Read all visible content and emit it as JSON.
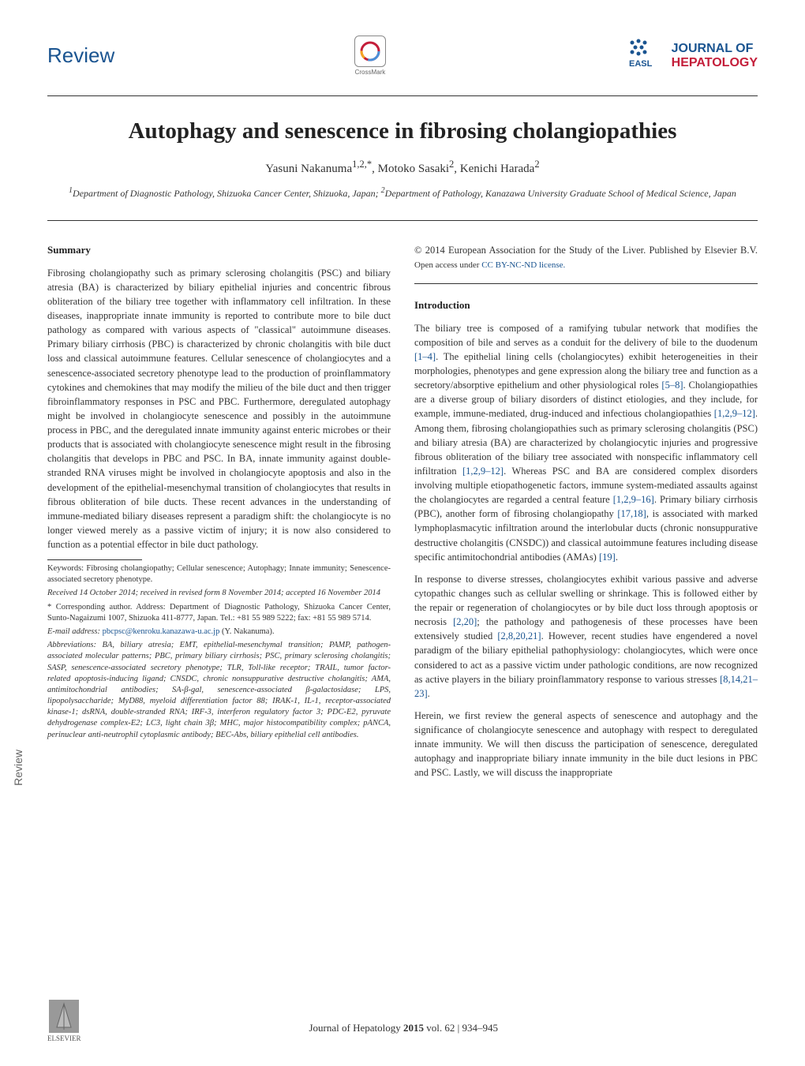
{
  "header": {
    "review_label": "Review",
    "crossmark_label": "CrossMark",
    "journal_line1": "JOURNAL OF",
    "journal_line2": "HEPATOLOGY",
    "easl_label": "EASL"
  },
  "title": "Autophagy and senescence in fibrosing cholangiopathies",
  "authors_html": "Yasuni Nakanuma<sup>1,2,*</sup>, Motoko Sasaki<sup>2</sup>, Kenichi Harada<sup>2</sup>",
  "affiliations_html": "<sup>1</sup>Department of Diagnostic Pathology, Shizuoka Cancer Center, Shizuoka, Japan; <sup>2</sup>Department of Pathology, Kanazawa University Graduate School of Medical Science, Japan",
  "left_column": {
    "summary_heading": "Summary",
    "summary_text": "Fibrosing cholangiopathy such as primary sclerosing cholangitis (PSC) and biliary atresia (BA) is characterized by biliary epithelial injuries and concentric fibrous obliteration of the biliary tree together with inflammatory cell infiltration. In these diseases, inappropriate innate immunity is reported to contribute more to bile duct pathology as compared with various aspects of \"classical\" autoimmune diseases. Primary biliary cirrhosis (PBC) is characterized by chronic cholangitis with bile duct loss and classical autoimmune features. Cellular senescence of cholangiocytes and a senescence-associated secretory phenotype lead to the production of proinflammatory cytokines and chemokines that may modify the milieu of the bile duct and then trigger fibroinflammatory responses in PSC and PBC. Furthermore, deregulated autophagy might be involved in cholangiocyte senescence and possibly in the autoimmune process in PBC, and the deregulated innate immunity against enteric microbes or their products that is associated with cholangiocyte senescence might result in the fibrosing cholangitis that develops in PBC and PSC. In BA, innate immunity against double-stranded RNA viruses might be involved in cholangiocyte apoptosis and also in the development of the epithelial-mesenchymal transition of cholangiocytes that results in fibrous obliteration of bile ducts. These recent advances in the understanding of immune-mediated biliary diseases represent a paradigm shift: the cholangiocyte is no longer viewed merely as a passive victim of injury; it is now also considered to function as a potential effector in bile duct pathology.",
    "keywords": "Keywords: Fibrosing cholangiopathy; Cellular senescence; Autophagy; Innate immunity; Senescence-associated secretory phenotype.",
    "received": "Received 14 October 2014; received in revised form 8 November 2014; accepted 16 November 2014",
    "corresponding": "* Corresponding author. Address: Department of Diagnostic Pathology, Shizuoka Cancer Center, Sunto-Nagaizumi 1007, Shizuoka 411-8777, Japan. Tel.: +81 55 989 5222; fax: +81 55 989 5714.",
    "email_label": "E-mail address: ",
    "email": "pbcpsc@kenroku.kanazawa-u.ac.jp",
    "email_author": " (Y. Nakanuma).",
    "abbreviations": "Abbreviations: BA, biliary atresia; EMT, epithelial-mesenchymal transition; PAMP, pathogen-associated molecular patterns; PBC, primary biliary cirrhosis; PSC, primary sclerosing cholangitis; SASP, senescence-associated secretory phenotype; TLR, Toll-like receptor; TRAIL, tumor factor-related apoptosis-inducing ligand; CNSDC, chronic nonsuppurative destructive cholangitis; AMA, antimitochondrial antibodies; SA-β-gal, senescence-associated β-galactosidase; LPS, lipopolysaccharide; MyD88, myeloid differentiation factor 88; IRAK-1, IL-1, receptor-associated kinase-1; dsRNA, double-stranded RNA; IRF-3, interferon regulatory factor 3; PDC-E2, pyruvate dehydrogenase complex-E2; LC3, light chain 3β; MHC, major histocompatibility complex; pANCA, perinuclear anti-neutrophil cytoplasmic antibody; BEC-Abs, biliary epithelial cell antibodies."
  },
  "right_column": {
    "copyright": "© 2014 European Association for the Study of the Liver. Published by Elsevier B.V. ",
    "license_prefix": "Open access under ",
    "license_link": "CC BY-NC-ND license.",
    "intro_heading": "Introduction",
    "para1_html": "The biliary tree is composed of a ramifying tubular network that modifies the composition of bile and serves as a conduit for the delivery of bile to the duodenum <span class=\"ref-link\">[1–4]</span>. The epithelial lining cells (cholangiocytes) exhibit heterogeneities in their morphologies, phenotypes and gene expression along the biliary tree and function as a secretory/absorptive epithelium and other physiological roles <span class=\"ref-link\">[5–8]</span>. Cholangiopathies are a diverse group of biliary disorders of distinct etiologies, and they include, for example, immune-mediated, drug-induced and infectious cholangiopathies <span class=\"ref-link\">[1,2,9–12]</span>. Among them, fibrosing cholangiopathies such as primary sclerosing cholangitis (PSC) and biliary atresia (BA) are characterized by cholangiocytic injuries and progressive fibrous obliteration of the biliary tree associated with nonspecific inflammatory cell infiltration <span class=\"ref-link\">[1,2,9–12]</span>. Whereas PSC and BA are considered complex disorders involving multiple etiopathogenetic factors, immune system-mediated assaults against the cholangiocytes are regarded a central feature <span class=\"ref-link\">[1,2,9–16]</span>. Primary biliary cirrhosis (PBC), another form of fibrosing cholangiopathy <span class=\"ref-link\">[17,18]</span>, is associated with marked lymphoplasmacytic infiltration around the interlobular ducts (chronic nonsuppurative destructive cholangitis (CNSDC)) and classical autoimmune features including disease specific antimitochondrial antibodies (AMAs) <span class=\"ref-link\">[19]</span>.",
    "para2_html": "In response to diverse stresses, cholangiocytes exhibit various passive and adverse cytopathic changes such as cellular swelling or shrinkage. This is followed either by the repair or regeneration of cholangiocytes or by bile duct loss through apoptosis or necrosis <span class=\"ref-link\">[2,20]</span>; the pathology and pathogenesis of these processes have been extensively studied <span class=\"ref-link\">[2,8,20,21]</span>. However, recent studies have engendered a novel paradigm of the biliary epithelial pathophysiology: cholangiocytes, which were once considered to act as a passive victim under pathologic conditions, are now recognized as active players in the biliary proinflammatory response to various stresses <span class=\"ref-link\">[8,14,21–23]</span>.",
    "para3": "Herein, we first review the general aspects of senescence and autophagy and the significance of cholangiocyte senescence and autophagy with respect to deregulated innate immunity. We will then discuss the participation of senescence, deregulated autophagy and inappropriate biliary innate immunity in the bile duct lesions in PBC and PSC. Lastly, we will discuss the inappropriate"
  },
  "side_tab": "Review",
  "footer": {
    "elsevier": "ELSEVIER",
    "citation_html": "Journal of Hepatology <b>2015</b> vol. 62 | 934–945"
  },
  "colors": {
    "link_blue": "#1a5490",
    "red": "#c41e3a",
    "text": "#333333"
  }
}
